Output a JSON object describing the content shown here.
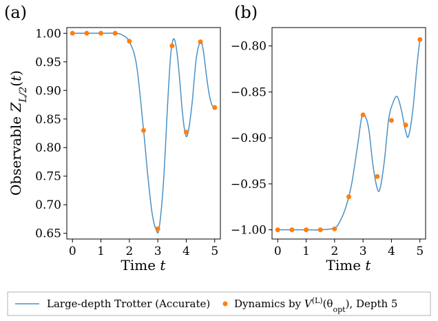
{
  "chart_data": [
    {
      "type": "line",
      "panel_label": "(a)",
      "xlabel": "Time t",
      "ylabel": "Observable Z_{L/2}(t)",
      "xlim": [
        -0.2,
        5.2
      ],
      "ylim": [
        0.64,
        1.01
      ],
      "xticks": [
        0,
        1,
        2,
        3,
        4,
        5
      ],
      "yticks": [
        0.65,
        0.7,
        0.75,
        0.8,
        0.85,
        0.9,
        0.95,
        1.0
      ],
      "ytick_labels": [
        "0.65",
        "0.70",
        "0.75",
        "0.80",
        "0.85",
        "0.90",
        "0.95",
        "1.00"
      ],
      "series": [
        {
          "name": "Large-depth Trotter (Accurate)",
          "kind": "line",
          "color": "#4a90c4",
          "x": [
            0,
            0.5,
            1.0,
            1.5,
            1.75,
            2.0,
            2.25,
            2.5,
            2.65,
            2.8,
            2.95,
            3.05,
            3.2,
            3.35,
            3.45,
            3.55,
            3.65,
            3.75,
            3.85,
            3.95,
            4.05,
            4.2,
            4.35,
            4.5,
            4.6,
            4.7,
            4.8,
            4.9,
            5.0
          ],
          "y": [
            1.0,
            1.0,
            1.0,
            1.0,
            0.997,
            0.985,
            0.945,
            0.83,
            0.75,
            0.685,
            0.655,
            0.66,
            0.74,
            0.88,
            0.96,
            0.99,
            0.975,
            0.93,
            0.87,
            0.828,
            0.823,
            0.875,
            0.955,
            0.985,
            0.97,
            0.93,
            0.895,
            0.875,
            0.87
          ]
        },
        {
          "name": "Dynamics by V^(L)(θ_opt), Depth 5",
          "kind": "scatter",
          "color": "#ff7f0e",
          "x": [
            0,
            0.5,
            1.0,
            1.5,
            2.0,
            2.5,
            3.0,
            3.5,
            4.0,
            4.5,
            5.0
          ],
          "y": [
            1.0,
            1.0,
            1.0,
            1.0,
            0.986,
            0.83,
            0.658,
            0.978,
            0.827,
            0.985,
            0.87
          ]
        }
      ]
    },
    {
      "type": "line",
      "panel_label": "(b)",
      "xlabel": "Time t",
      "ylabel": "",
      "xlim": [
        -0.2,
        5.2
      ],
      "ylim": [
        -1.01,
        -0.78
      ],
      "xticks": [
        0,
        1,
        2,
        3,
        4,
        5
      ],
      "yticks": [
        -1.0,
        -0.95,
        -0.9,
        -0.85,
        -0.8
      ],
      "ytick_labels": [
        "−1.00",
        "−0.95",
        "−0.90",
        "−0.85",
        "−0.80"
      ],
      "series": [
        {
          "name": "Large-depth Trotter (Accurate)",
          "kind": "line",
          "color": "#4a90c4",
          "x": [
            0,
            0.5,
            1.0,
            1.5,
            2.0,
            2.2,
            2.4,
            2.6,
            2.8,
            2.95,
            3.05,
            3.2,
            3.35,
            3.5,
            3.6,
            3.75,
            3.9,
            4.05,
            4.2,
            4.35,
            4.5,
            4.6,
            4.75,
            4.9,
            5.0
          ],
          "y": [
            -1.0,
            -1.0,
            -1.0,
            -1.0,
            -0.998,
            -0.99,
            -0.975,
            -0.95,
            -0.91,
            -0.878,
            -0.875,
            -0.89,
            -0.93,
            -0.955,
            -0.955,
            -0.925,
            -0.88,
            -0.862,
            -0.855,
            -0.87,
            -0.893,
            -0.898,
            -0.87,
            -0.82,
            -0.793
          ]
        },
        {
          "name": "Dynamics by V^(L)(θ_opt), Depth 5",
          "kind": "scatter",
          "color": "#ff7f0e",
          "x": [
            0,
            0.5,
            1.0,
            1.5,
            2.0,
            2.5,
            3.0,
            3.5,
            4.0,
            4.5,
            5.0
          ],
          "y": [
            -1.0,
            -1.0,
            -1.0,
            -1.0,
            -0.999,
            -0.964,
            -0.875,
            -0.942,
            -0.881,
            -0.886,
            -0.793
          ]
        }
      ]
    }
  ],
  "legend": {
    "line_label": "Large-depth Trotter (Accurate)",
    "scatter_label_prefix": "Dynamics by ",
    "scatter_label_math": "V",
    "scatter_label_sup": "(L)",
    "scatter_label_theta": "(θ",
    "scatter_label_sub": "opt",
    "scatter_label_suffix": "), Depth 5",
    "placement": "bottom-center"
  },
  "colors": {
    "line": "#4a90c4",
    "marker": "#ff7f0e"
  }
}
